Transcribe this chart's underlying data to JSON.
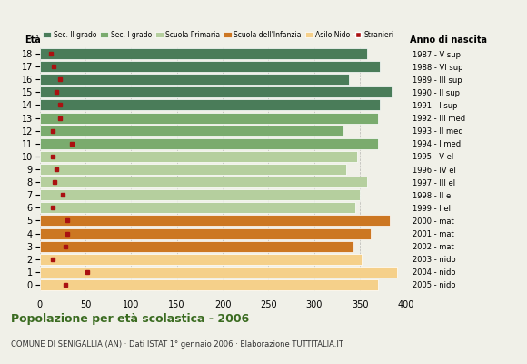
{
  "ages": [
    18,
    17,
    16,
    15,
    14,
    13,
    12,
    11,
    10,
    9,
    8,
    7,
    6,
    5,
    4,
    3,
    2,
    1,
    0
  ],
  "bar_values": [
    358,
    372,
    338,
    385,
    372,
    370,
    332,
    370,
    347,
    335,
    358,
    350,
    345,
    383,
    362,
    343,
    352,
    390,
    370
  ],
  "stranieri": [
    12,
    15,
    22,
    18,
    22,
    22,
    14,
    35,
    14,
    18,
    16,
    25,
    14,
    30,
    30,
    28,
    14,
    52,
    28
  ],
  "year_labels": [
    "1987 - V sup",
    "1988 - VI sup",
    "1989 - III sup",
    "1990 - II sup",
    "1991 - I sup",
    "1992 - III med",
    "1993 - II med",
    "1994 - I med",
    "1995 - V el",
    "1996 - IV el",
    "1997 - III el",
    "1998 - II el",
    "1999 - I el",
    "2000 - mat",
    "2001 - mat",
    "2002 - mat",
    "2003 - nido",
    "2004 - nido",
    "2005 - nido"
  ],
  "bar_colors": [
    "#4a7c59",
    "#4a7c59",
    "#4a7c59",
    "#4a7c59",
    "#4a7c59",
    "#7aab6e",
    "#7aab6e",
    "#7aab6e",
    "#b5cf9e",
    "#b5cf9e",
    "#b5cf9e",
    "#b5cf9e",
    "#b5cf9e",
    "#cc7722",
    "#cc7722",
    "#cc7722",
    "#f5d08a",
    "#f5d08a",
    "#f5d08a"
  ],
  "legend_labels": [
    "Sec. II grado",
    "Sec. I grado",
    "Scuola Primaria",
    "Scuola dell'Infanzia",
    "Asilo Nido",
    "Stranieri"
  ],
  "legend_colors": [
    "#4a7c59",
    "#7aab6e",
    "#b5cf9e",
    "#cc7722",
    "#f5d08a",
    "#aa1111"
  ],
  "title": "Popolazione per età scolastica - 2006",
  "subtitle": "COMUNE DI SENIGALLIA (AN) · Dati ISTAT 1° gennaio 2006 · Elaborazione TUTTITALIA.IT",
  "xlabel_eta": "Età",
  "xlabel_anno": "Anno di nascita",
  "xlim": [
    0,
    400
  ],
  "stranieri_color": "#aa1111",
  "background_color": "#f0f0e8",
  "bar_height": 0.85
}
